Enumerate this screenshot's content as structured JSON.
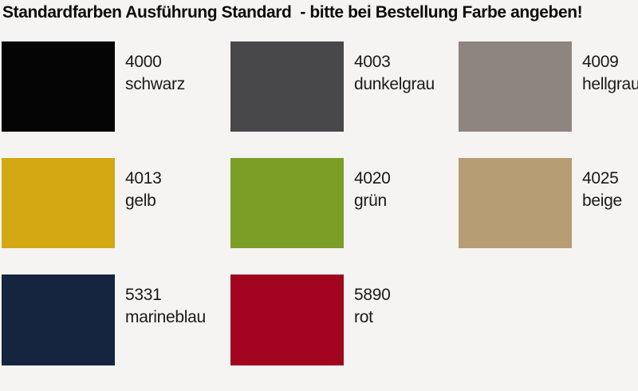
{
  "title": "Standardfarben Ausführung Standard  - bitte bei Bestellung Farbe angeben!",
  "background_color": "#f5f4f2",
  "text_color": "#1a1a1a",
  "swatches": [
    {
      "code": "4000",
      "name": "schwarz",
      "color": "#050505"
    },
    {
      "code": "4003",
      "name": "dunkelgrau",
      "color": "#48484a"
    },
    {
      "code": "4009",
      "name": "hellgrau",
      "color": "#8e8480"
    },
    {
      "code": "4013",
      "name": "gelb",
      "color": "#d4a813"
    },
    {
      "code": "4020",
      "name": "grün",
      "color": "#7a9e26"
    },
    {
      "code": "4025",
      "name": "beige",
      "color": "#b69d74"
    },
    {
      "code": "5331",
      "name": "marineblau",
      "color": "#152540"
    },
    {
      "code": "5890",
      "name": "rot",
      "color": "#a10520"
    }
  ]
}
